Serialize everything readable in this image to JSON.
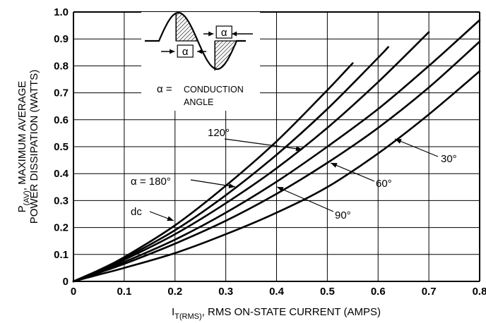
{
  "chart_data": {
    "type": "line",
    "xlabel_main": "I",
    "xlabel_sub": "T(RMS)",
    "xlabel_rest": ", RMS ON-STATE CURRENT (AMPS)",
    "ylabel_line1_main": "P",
    "ylabel_line1_sub": "(AV)",
    "ylabel_line1_rest": ", MAXIMUM AVERAGE",
    "ylabel_line2": "POWER DISSIPATION (WATTS)",
    "xlim": [
      0,
      0.8
    ],
    "ylim": [
      0,
      1.0
    ],
    "x_ticks": [
      "0",
      "0.1",
      "0.2",
      "0.3",
      "0.4",
      "0.5",
      "0.6",
      "0.7",
      "0.8"
    ],
    "y_ticks": [
      "0",
      "0.1",
      "0.2",
      "0.3",
      "0.4",
      "0.5",
      "0.6",
      "0.7",
      "0.8",
      "0.9",
      "1.0"
    ],
    "grid": true,
    "series": [
      {
        "name": "dc",
        "x": [
          0,
          0.05,
          0.1,
          0.2,
          0.3,
          0.4,
          0.5,
          0.55
        ],
        "y": [
          0,
          0.042,
          0.09,
          0.208,
          0.355,
          0.52,
          0.71,
          0.81
        ]
      },
      {
        "name": "α = 180°",
        "x": [
          0,
          0.05,
          0.1,
          0.2,
          0.3,
          0.4,
          0.5,
          0.6,
          0.62
        ],
        "y": [
          0,
          0.04,
          0.085,
          0.19,
          0.32,
          0.47,
          0.64,
          0.83,
          0.87
        ]
      },
      {
        "name": "120°",
        "x": [
          0,
          0.05,
          0.1,
          0.2,
          0.3,
          0.4,
          0.5,
          0.6,
          0.7
        ],
        "y": [
          0,
          0.038,
          0.08,
          0.175,
          0.29,
          0.42,
          0.57,
          0.74,
          0.925
        ]
      },
      {
        "name": "90°",
        "x": [
          0,
          0.05,
          0.1,
          0.2,
          0.3,
          0.4,
          0.5,
          0.6,
          0.7,
          0.8
        ],
        "y": [
          0,
          0.035,
          0.072,
          0.155,
          0.255,
          0.37,
          0.5,
          0.64,
          0.8,
          0.97
        ]
      },
      {
        "name": "60°",
        "x": [
          0,
          0.05,
          0.1,
          0.2,
          0.3,
          0.4,
          0.5,
          0.6,
          0.7,
          0.8
        ],
        "y": [
          0,
          0.032,
          0.065,
          0.14,
          0.225,
          0.325,
          0.44,
          0.57,
          0.72,
          0.89
        ]
      },
      {
        "name": "30°",
        "x": [
          0,
          0.05,
          0.1,
          0.2,
          0.3,
          0.4,
          0.5,
          0.6,
          0.7,
          0.8
        ],
        "y": [
          0,
          0.025,
          0.05,
          0.105,
          0.175,
          0.255,
          0.35,
          0.475,
          0.62,
          0.78
        ]
      }
    ],
    "inset": {
      "alpha_symbol": "α",
      "definition_prefix": "α =",
      "definition_line1": "CONDUCTION",
      "definition_line2": "ANGLE"
    }
  }
}
